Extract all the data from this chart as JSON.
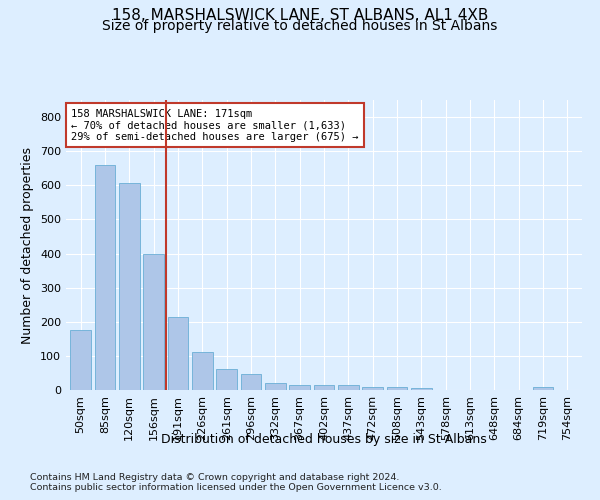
{
  "title": "158, MARSHALSWICK LANE, ST ALBANS, AL1 4XB",
  "subtitle": "Size of property relative to detached houses in St Albans",
  "xlabel": "Distribution of detached houses by size in St Albans",
  "ylabel": "Number of detached properties",
  "footnote1": "Contains HM Land Registry data © Crown copyright and database right 2024.",
  "footnote2": "Contains public sector information licensed under the Open Government Licence v3.0.",
  "bar_labels": [
    "50sqm",
    "85sqm",
    "120sqm",
    "156sqm",
    "191sqm",
    "226sqm",
    "261sqm",
    "296sqm",
    "332sqm",
    "367sqm",
    "402sqm",
    "437sqm",
    "472sqm",
    "508sqm",
    "543sqm",
    "578sqm",
    "613sqm",
    "648sqm",
    "684sqm",
    "719sqm",
    "754sqm"
  ],
  "bar_values": [
    175,
    660,
    607,
    400,
    215,
    110,
    63,
    47,
    20,
    16,
    15,
    14,
    8,
    10,
    7,
    0,
    0,
    0,
    0,
    8,
    0
  ],
  "bar_color": "#aec6e8",
  "bar_edgecolor": "#6aaed6",
  "vline_x": 3.5,
  "vline_color": "#c0392b",
  "annotation_text": "158 MARSHALSWICK LANE: 171sqm\n← 70% of detached houses are smaller (1,633)\n29% of semi-detached houses are larger (675) →",
  "annotation_box_edgecolor": "#c0392b",
  "annotation_box_facecolor": "white",
  "ylim": [
    0,
    850
  ],
  "yticks": [
    0,
    100,
    200,
    300,
    400,
    500,
    600,
    700,
    800
  ],
  "title_fontsize": 11,
  "subtitle_fontsize": 10,
  "axis_label_fontsize": 9,
  "tick_fontsize": 8,
  "annot_fontsize": 7.5,
  "footnote_fontsize": 6.8,
  "background_color": "#ddeeff",
  "plot_bg_color": "#ddeeff"
}
